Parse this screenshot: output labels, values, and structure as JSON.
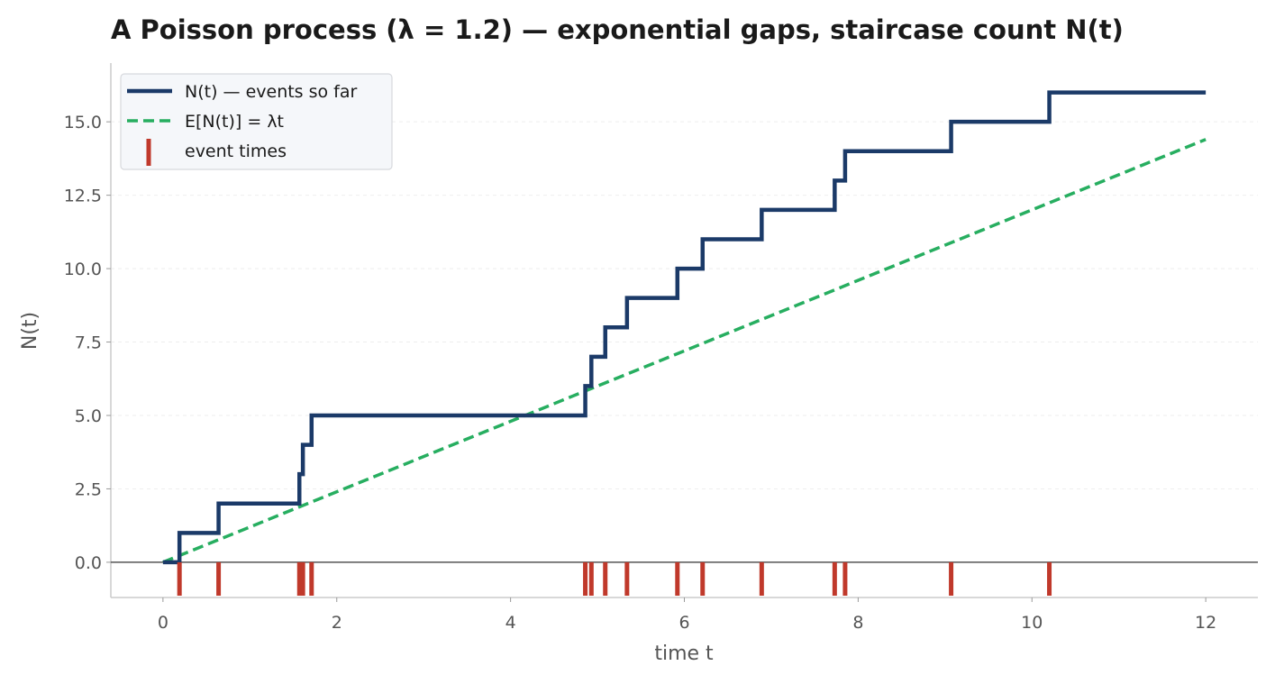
{
  "chart_data": {
    "type": "line",
    "title": "A Poisson process (λ = 1.2) — exponential gaps, staircase count N(t)",
    "xlabel": "time t",
    "ylabel": "N(t)",
    "xlim": [
      -0.6,
      12.6
    ],
    "ylim": [
      -1.2,
      17.0
    ],
    "x_ticks": [
      0,
      2,
      4,
      6,
      8,
      10,
      12
    ],
    "x_tick_labels": [
      "0",
      "2",
      "4",
      "6",
      "8",
      "10",
      "12"
    ],
    "y_ticks": [
      0,
      2.5,
      5,
      7.5,
      10,
      12.5,
      15
    ],
    "y_tick_labels": [
      "0.0",
      "2.5",
      "5.0",
      "7.5",
      "10.0",
      "12.5",
      "15.0"
    ],
    "grid": "horizontal dashed",
    "legend_position": "top-left",
    "series": [
      {
        "name": "N(t) — events so far",
        "kind": "step",
        "color": "#1b3a68",
        "x": [
          0,
          0.19,
          0.64,
          1.57,
          1.61,
          1.71,
          4.86,
          4.93,
          5.09,
          5.34,
          5.92,
          6.21,
          6.89,
          7.73,
          7.85,
          9.07,
          10.2,
          12.0
        ],
        "y": [
          0,
          1,
          2,
          3,
          4,
          5,
          6,
          7,
          8,
          9,
          10,
          11,
          12,
          13,
          14,
          15,
          16,
          16
        ]
      },
      {
        "name": "E[N(t)] = λt",
        "kind": "dashed-line",
        "color": "#27ae60",
        "x": [
          0,
          12
        ],
        "y": [
          0,
          14.4
        ]
      },
      {
        "name": "event times",
        "kind": "rug",
        "color": "#c0392b",
        "x": [
          0.19,
          0.64,
          1.57,
          1.61,
          1.71,
          4.86,
          4.93,
          5.09,
          5.34,
          5.92,
          6.21,
          6.89,
          7.73,
          7.85,
          9.07,
          10.2
        ]
      }
    ]
  }
}
